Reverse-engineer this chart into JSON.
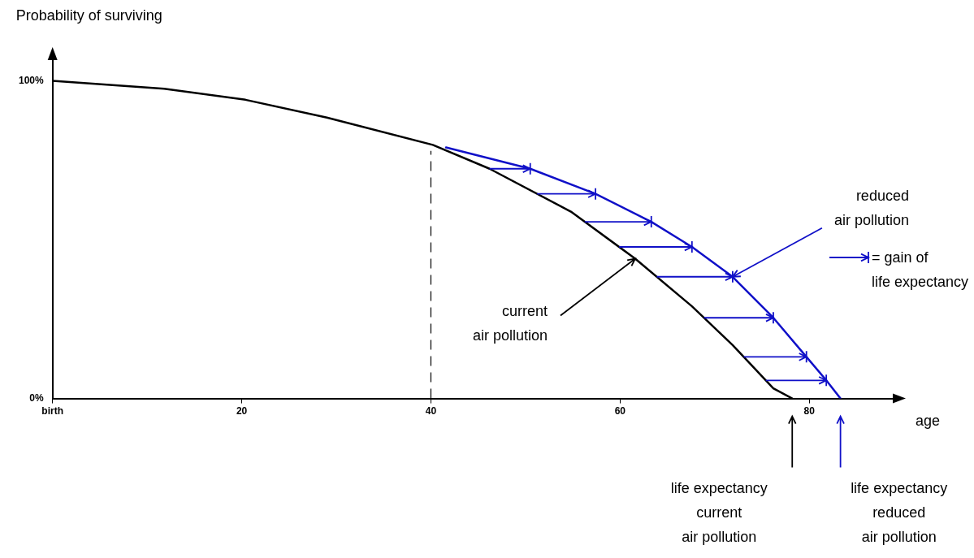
{
  "chart_data": {
    "type": "line",
    "xlabel": "age",
    "ylabel": "Probability of surviving",
    "xlim": [
      0,
      89
    ],
    "ylim": [
      0,
      107
    ],
    "xticks": [
      {
        "value": 0,
        "label": "birth"
      },
      20,
      40,
      60,
      80
    ],
    "yticks": [
      {
        "value": 0,
        "label": "0%"
      },
      {
        "value": 100,
        "label": "100%"
      }
    ],
    "grid": false,
    "legend": false,
    "marker": "none",
    "line_style": "solid",
    "series": [
      {
        "color": "#000000",
        "x": [
          0,
          11.8,
          20.4,
          29,
          40.2,
          46.2,
          54.8,
          61.6,
          67.6,
          71.9,
          76.2,
          78.2
        ],
        "values": [
          100,
          97.5,
          94,
          88.4,
          79.8,
          72.3,
          58.8,
          44,
          29,
          16.8,
          3.2,
          0
        ]
      },
      {
        "color": "#1010c8",
        "x": [
          41.6,
          50.5,
          57.4,
          63.3,
          67.6,
          71.9,
          76.2,
          79.7,
          81.8,
          83.3
        ],
        "values": [
          79,
          72.3,
          64.4,
          55.6,
          47.7,
          38.3,
          25.4,
          13.1,
          5.7,
          0
        ]
      }
    ],
    "ref_lines": [
      {
        "axis": "x",
        "value": 40,
        "line_style": "dashed",
        "color": "#000000"
      }
    ],
    "annotations": [
      {
        "text": "current\nair pollution",
        "x": 61.6,
        "y": 44
      },
      {
        "text": "reduced\nair pollution",
        "x": 71.9,
        "y": 38.3
      },
      "= gain of\nlife expectancy",
      "life expectancy\ncurrent\nair pollution",
      "life expectancy\nreduced\nair pollution"
    ]
  }
}
